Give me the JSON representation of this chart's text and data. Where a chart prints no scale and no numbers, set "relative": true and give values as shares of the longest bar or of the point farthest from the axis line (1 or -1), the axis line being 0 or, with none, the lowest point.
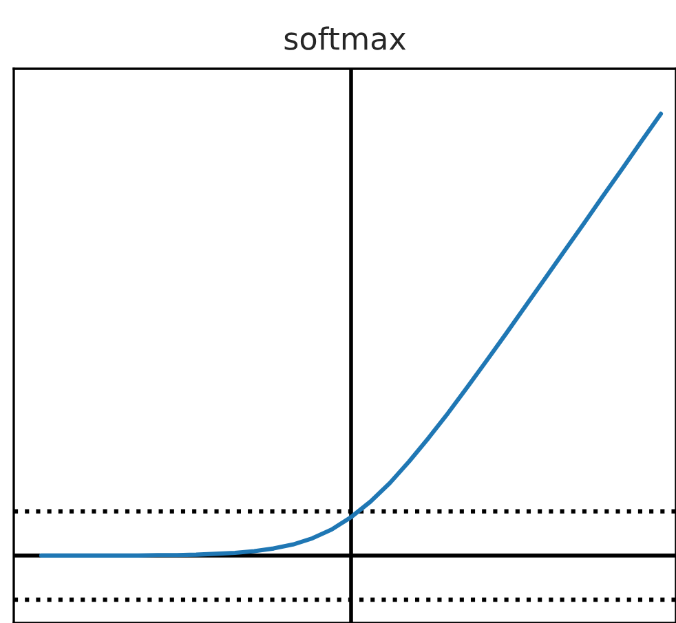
{
  "chart_data": {
    "type": "line",
    "title": "softmax",
    "relative": true,
    "categories": [
      null,
      null,
      null,
      null,
      null,
      null,
      null,
      null,
      null,
      null,
      null,
      null,
      null,
      null,
      null,
      null,
      null,
      null,
      null,
      null,
      null,
      null,
      null,
      null,
      null,
      null,
      null,
      null,
      null,
      null,
      null,
      null,
      null
    ],
    "series": [
      {
        "color": "#1f77b4",
        "values": [
          0,
          0,
          0,
          0,
          0,
          0,
          0.001,
          0.001,
          0.002,
          0.004,
          0.006,
          0.01,
          0.016,
          0.025,
          0.039,
          0.059,
          0.087,
          0.122,
          0.164,
          0.213,
          0.266,
          0.322,
          0.381,
          0.441,
          0.502,
          0.564,
          0.626,
          0.688,
          0.75,
          0.813,
          0.875,
          0.938,
          1.0
        ]
      }
    ],
    "ref_lines": [
      {
        "axis": "y",
        "value": 0.1,
        "color": "#000000",
        "line_style": "dotted"
      },
      {
        "axis": "y",
        "value": -0.1,
        "color": "#000000",
        "line_style": "dotted"
      }
    ],
    "legend": false,
    "marker": "none",
    "line_style": "solid"
  }
}
